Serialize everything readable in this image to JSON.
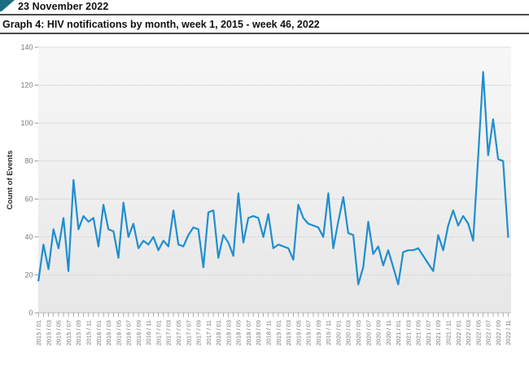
{
  "header": {
    "date": "23 November 2022",
    "flag_icon_color": "#1b6f80"
  },
  "graph_title": "Graph 4: HIV notifications by month, week 1, 2015 - week 46, 2022",
  "colors": {
    "line": "#1f8ed0",
    "plot_bg_top": "#f7f7f7",
    "plot_bg_bottom": "#e7e7e7",
    "gridline": "#dcdcdc",
    "axis": "#bbbbbb",
    "tick": "#999999",
    "tick_label": "#7a7a7a",
    "axis_title": "#2b2b2b",
    "heading_rule": "#4a4a4a"
  },
  "chart_data": {
    "type": "line",
    "title": "Graph 4: HIV notifications by month, week 1, 2015 - week 46, 2022",
    "xlabel": "",
    "ylabel": "Count of Events",
    "ylim": [
      0,
      140
    ],
    "yticks": [
      0,
      20,
      40,
      60,
      80,
      100,
      120,
      140
    ],
    "grid": true,
    "legend_position": "none",
    "x_label_every": 2,
    "categories": [
      "2015 / 01",
      "2015 / 02",
      "2015 / 03",
      "2015 / 04",
      "2015 / 05",
      "2015 / 06",
      "2015 / 07",
      "2015 / 08",
      "2015 / 09",
      "2015 / 10",
      "2015 / 11",
      "2015 / 12",
      "2016 / 01",
      "2016 / 02",
      "2016 / 03",
      "2016 / 04",
      "2016 / 05",
      "2016 / 06",
      "2016 / 07",
      "2016 / 08",
      "2016 / 09",
      "2016 / 10",
      "2016 / 11",
      "2016 / 12",
      "2017 / 01",
      "2017 / 02",
      "2017 / 03",
      "2017 / 04",
      "2017 / 05",
      "2017 / 06",
      "2017 / 07",
      "2017 / 08",
      "2017 / 09",
      "2017 / 10",
      "2017 / 11",
      "2017 / 12",
      "2018 / 01",
      "2018 / 02",
      "2018 / 03",
      "2018 / 04",
      "2018 / 05",
      "2018 / 06",
      "2018 / 07",
      "2018 / 08",
      "2018 / 09",
      "2018 / 10",
      "2018 / 11",
      "2018 / 12",
      "2019 / 01",
      "2019 / 02",
      "2019 / 03",
      "2019 / 04",
      "2019 / 05",
      "2019 / 06",
      "2019 / 07",
      "2019 / 08",
      "2019 / 09",
      "2019 / 10",
      "2019 / 11",
      "2019 / 12",
      "2020 / 01",
      "2020 / 02",
      "2020 / 03",
      "2020 / 04",
      "2020 / 05",
      "2020 / 06",
      "2020 / 07",
      "2020 / 08",
      "2020 / 09",
      "2020 / 10",
      "2020 / 11",
      "2020 / 12",
      "2021 / 01",
      "2021 / 02",
      "2021 / 03",
      "2021 / 04",
      "2021 / 05",
      "2021 / 06",
      "2021 / 07",
      "2021 / 08",
      "2021 / 09",
      "2021 / 10",
      "2021 / 11",
      "2021 / 12",
      "2022 / 01",
      "2022 / 02",
      "2022 / 03",
      "2022 / 04",
      "2022 / 05",
      "2022 / 06",
      "2022 / 07",
      "2022 / 08",
      "2022 / 09",
      "2022 / 10",
      "2022 / 11"
    ],
    "series": [
      {
        "name": "HIV notifications",
        "color": "#1f8ed0",
        "values": [
          17,
          36,
          23,
          44,
          34,
          50,
          22,
          70,
          44,
          51,
          48,
          50,
          35,
          57,
          44,
          43,
          29,
          58,
          40,
          47,
          34,
          38,
          36,
          40,
          33,
          38,
          35,
          54,
          36,
          35,
          41,
          45,
          44,
          24,
          53,
          54,
          29,
          41,
          37,
          30,
          63,
          37,
          50,
          51,
          50,
          40,
          52,
          34,
          36,
          35,
          34,
          28,
          57,
          50,
          47,
          46,
          45,
          40,
          63,
          34,
          48,
          61,
          42,
          41,
          15,
          24,
          48,
          31,
          35,
          25,
          33,
          24,
          15,
          32,
          33,
          33,
          34,
          30,
          26,
          22,
          41,
          33,
          46,
          54,
          46,
          51,
          47,
          38,
          82,
          127,
          83,
          102,
          81,
          80,
          40
        ]
      }
    ]
  }
}
